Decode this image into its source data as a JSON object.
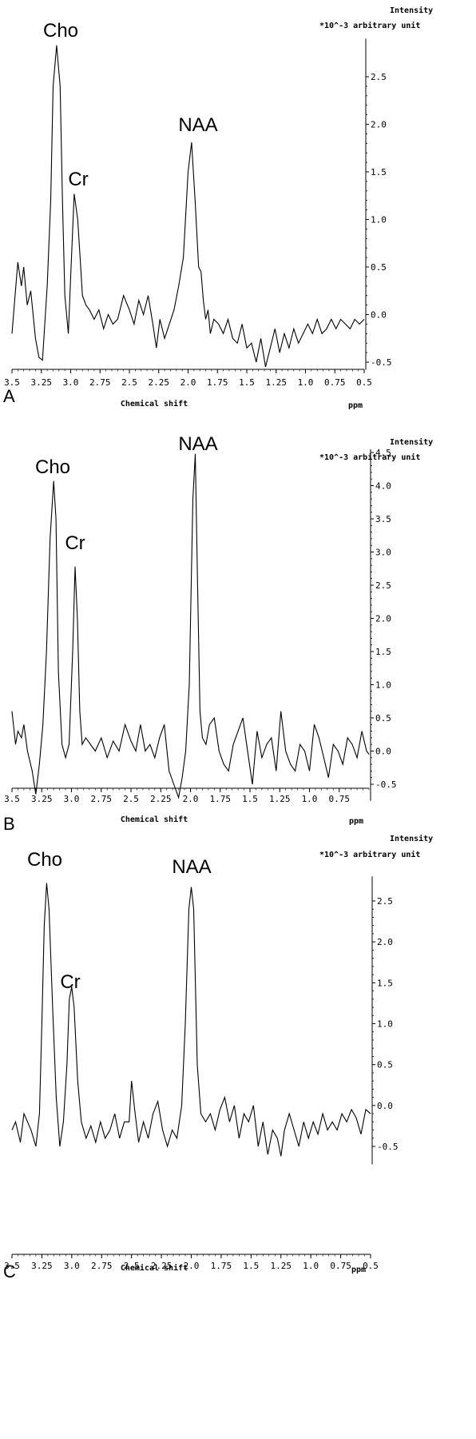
{
  "chart_data": [
    {
      "type": "line",
      "panel_label": "A",
      "xlabel": "Chemical shift",
      "x_unit": "ppm",
      "ylabel": "Intensity",
      "y_unit": "*10^-3 arbitrary unit",
      "xlim": [
        3.5,
        0.5
      ],
      "ylim": [
        -0.58,
        2.9
      ],
      "x_ticks": [
        "3.5",
        "3.25",
        "3.0",
        "2.75",
        "2.5",
        "2.25",
        "2.0",
        "1.75",
        "1.5",
        "1.25",
        "1.0",
        "0.75",
        "0.5"
      ],
      "y_ticks": [
        "2.5",
        "2.0",
        "1.5",
        "1.0",
        "0.5",
        "0.0",
        "-0.5"
      ],
      "y_tick_values": [
        2.5,
        2.0,
        1.5,
        1.0,
        0.5,
        0.0,
        -0.5
      ],
      "annotations": [
        {
          "text": "Cho",
          "x": 3.09,
          "y": 2.83
        },
        {
          "text": "Cr",
          "x": 2.92,
          "y": 1.27
        },
        {
          "text": "NAA",
          "x": 1.89,
          "y": 1.81
        }
      ],
      "series": [
        {
          "x": [
            3.5,
            3.45,
            3.42,
            3.4,
            3.37,
            3.34,
            3.3,
            3.27,
            3.24,
            3.2,
            3.17,
            3.15,
            3.12,
            3.09,
            3.07,
            3.05,
            3.02,
            3.0,
            2.97,
            2.94,
            2.92,
            2.9,
            2.87,
            2.84,
            2.8,
            2.76,
            2.72,
            2.68,
            2.64,
            2.6,
            2.55,
            2.5,
            2.46,
            2.42,
            2.38,
            2.34,
            2.3,
            2.27,
            2.24,
            2.2,
            2.16,
            2.12,
            2.08,
            2.04,
            2.0,
            1.97,
            1.94,
            1.91,
            1.89,
            1.87,
            1.85,
            1.83,
            1.81,
            1.78,
            1.74,
            1.7,
            1.66,
            1.62,
            1.58,
            1.54,
            1.5,
            1.46,
            1.42,
            1.38,
            1.34,
            1.3,
            1.26,
            1.22,
            1.18,
            1.14,
            1.1,
            1.06,
            1.02,
            0.98,
            0.94,
            0.9,
            0.86,
            0.82,
            0.78,
            0.74,
            0.7,
            0.66,
            0.62,
            0.58,
            0.54,
            0.5
          ],
          "y": [
            -0.2,
            0.55,
            0.3,
            0.5,
            0.1,
            0.25,
            -0.25,
            -0.45,
            -0.48,
            0.3,
            1.2,
            2.4,
            2.83,
            2.4,
            1.2,
            0.2,
            -0.2,
            0.4,
            1.27,
            1.0,
            0.6,
            0.2,
            0.1,
            0.05,
            -0.05,
            0.05,
            -0.15,
            0.0,
            -0.1,
            -0.05,
            0.2,
            0.05,
            -0.1,
            0.15,
            0.0,
            0.2,
            -0.1,
            -0.35,
            -0.05,
            -0.25,
            -0.1,
            0.05,
            0.3,
            0.6,
            1.5,
            1.81,
            1.2,
            0.5,
            0.45,
            0.15,
            -0.05,
            0.05,
            -0.2,
            -0.05,
            -0.1,
            -0.2,
            -0.05,
            -0.25,
            -0.3,
            -0.1,
            -0.35,
            -0.3,
            -0.5,
            -0.25,
            -0.55,
            -0.35,
            -0.15,
            -0.4,
            -0.2,
            -0.35,
            -0.15,
            -0.3,
            -0.2,
            -0.1,
            -0.2,
            -0.05,
            -0.2,
            -0.15,
            -0.05,
            -0.15,
            -0.05,
            -0.1,
            -0.15,
            -0.05,
            -0.1,
            -0.05
          ]
        }
      ]
    },
    {
      "type": "line",
      "panel_label": "B",
      "xlabel": "Chemical shift",
      "x_unit": "ppm",
      "ylabel": "Intensity",
      "y_unit": "*10^-3 arbitrary unit",
      "xlim": [
        3.5,
        0.5
      ],
      "ylim": [
        -0.75,
        4.55
      ],
      "x_ticks": [
        "3.5",
        "3.25",
        "3.0",
        "2.75",
        "2.5",
        "2.25",
        "2.0",
        "1.75",
        "1.5",
        "1.25",
        "1.0",
        "0.75"
      ],
      "y_ticks": [
        "4.5",
        "4.0",
        "3.5",
        "3.0",
        "2.5",
        "2.0",
        "1.5",
        "1.0",
        "0.5",
        "0.0",
        "-0.5"
      ],
      "y_tick_values": [
        4.5,
        4.0,
        3.5,
        3.0,
        2.5,
        2.0,
        1.5,
        1.0,
        0.5,
        0.0,
        -0.5
      ],
      "annotations": [
        {
          "text": "Cho",
          "x": 3.14,
          "y": 4.07
        },
        {
          "text": "Cr",
          "x": 2.95,
          "y": 2.78
        },
        {
          "text": "NAA",
          "x": 1.95,
          "y": 4.48
        }
      ],
      "series": [
        {
          "x": [
            3.5,
            3.47,
            3.45,
            3.42,
            3.4,
            3.37,
            3.33,
            3.3,
            3.27,
            3.24,
            3.21,
            3.18,
            3.15,
            3.13,
            3.11,
            3.08,
            3.05,
            3.02,
            2.99,
            2.97,
            2.95,
            2.93,
            2.91,
            2.88,
            2.84,
            2.8,
            2.75,
            2.7,
            2.65,
            2.6,
            2.55,
            2.5,
            2.46,
            2.42,
            2.38,
            2.34,
            2.3,
            2.26,
            2.22,
            2.18,
            2.14,
            2.1,
            2.07,
            2.04,
            2.01,
            1.98,
            1.96,
            1.94,
            1.92,
            1.9,
            1.87,
            1.84,
            1.8,
            1.76,
            1.72,
            1.68,
            1.64,
            1.6,
            1.56,
            1.52,
            1.48,
            1.44,
            1.4,
            1.36,
            1.32,
            1.28,
            1.24,
            1.2,
            1.16,
            1.12,
            1.08,
            1.04,
            1.0,
            0.96,
            0.92,
            0.88,
            0.84,
            0.8,
            0.76,
            0.72,
            0.68,
            0.64,
            0.6,
            0.56,
            0.52,
            0.5
          ],
          "y": [
            0.6,
            0.1,
            0.3,
            0.2,
            0.4,
            0.0,
            -0.3,
            -0.65,
            -0.2,
            0.4,
            1.5,
            3.2,
            4.07,
            3.5,
            1.2,
            0.1,
            -0.1,
            0.1,
            1.5,
            2.78,
            2.0,
            0.6,
            0.1,
            0.2,
            0.1,
            0.0,
            0.2,
            -0.1,
            0.15,
            0.0,
            0.4,
            0.15,
            0.0,
            0.4,
            0.0,
            0.1,
            -0.1,
            0.2,
            0.4,
            -0.3,
            -0.5,
            -0.7,
            -0.4,
            0.0,
            1.0,
            3.8,
            4.48,
            2.5,
            0.6,
            0.2,
            0.1,
            0.4,
            0.5,
            0.0,
            -0.2,
            -0.3,
            0.1,
            0.3,
            0.5,
            0.0,
            -0.5,
            0.3,
            -0.1,
            0.1,
            0.2,
            -0.3,
            0.6,
            0.0,
            -0.2,
            -0.3,
            0.1,
            0.0,
            -0.3,
            0.4,
            0.2,
            -0.1,
            -0.4,
            0.1,
            0.0,
            -0.2,
            0.2,
            0.1,
            -0.1,
            0.3,
            0.0,
            -0.05
          ]
        }
      ]
    },
    {
      "type": "line",
      "panel_label": "C",
      "xlabel": "Chemical shift",
      "x_unit": "ppm",
      "ylabel": "Intensity",
      "y_unit": "*10^-3 arbitrary unit",
      "xlim": [
        3.5,
        0.5
      ],
      "ylim": [
        -0.72,
        2.8
      ],
      "x_ticks": [
        "3.5",
        "3.25",
        "3.0",
        "2.75",
        "2.5",
        "2.25",
        "2.0",
        "1.75",
        "1.5",
        "1.25",
        "1.0",
        "0.75",
        "0.5"
      ],
      "y_ticks": [
        "2.5",
        "2.0",
        "1.5",
        "1.0",
        "0.5",
        "0.0",
        "-0.5"
      ],
      "y_tick_values": [
        2.5,
        2.0,
        1.5,
        1.0,
        0.5,
        0.0,
        -0.5
      ],
      "annotations": [
        {
          "text": "Cho",
          "x": 3.2,
          "y": 2.72
        },
        {
          "text": "Cr",
          "x": 3.01,
          "y": 1.45
        },
        {
          "text": "NAA",
          "x": 2.0,
          "y": 2.67
        }
      ],
      "series": [
        {
          "x": [
            3.5,
            3.47,
            3.43,
            3.4,
            3.37,
            3.34,
            3.3,
            3.27,
            3.25,
            3.23,
            3.21,
            3.19,
            3.16,
            3.13,
            3.1,
            3.07,
            3.04,
            3.02,
            3.0,
            2.98,
            2.95,
            2.92,
            2.88,
            2.84,
            2.8,
            2.76,
            2.72,
            2.68,
            2.64,
            2.6,
            2.56,
            2.52,
            2.5,
            2.47,
            2.44,
            2.4,
            2.36,
            2.32,
            2.28,
            2.24,
            2.2,
            2.16,
            2.12,
            2.08,
            2.05,
            2.02,
            2.0,
            1.98,
            1.95,
            1.92,
            1.88,
            1.84,
            1.8,
            1.76,
            1.72,
            1.68,
            1.64,
            1.6,
            1.56,
            1.52,
            1.48,
            1.44,
            1.4,
            1.36,
            1.32,
            1.28,
            1.25,
            1.22,
            1.18,
            1.14,
            1.1,
            1.06,
            1.02,
            0.98,
            0.94,
            0.9,
            0.86,
            0.82,
            0.78,
            0.74,
            0.7,
            0.66,
            0.62,
            0.58,
            0.54,
            0.5
          ],
          "y": [
            -0.3,
            -0.2,
            -0.45,
            -0.1,
            -0.2,
            -0.3,
            -0.5,
            -0.1,
            1.0,
            2.2,
            2.72,
            2.4,
            1.2,
            0.1,
            -0.5,
            -0.2,
            0.5,
            1.3,
            1.45,
            1.2,
            0.3,
            -0.2,
            -0.4,
            -0.25,
            -0.45,
            -0.2,
            -0.4,
            -0.3,
            -0.1,
            -0.4,
            -0.2,
            -0.2,
            0.3,
            -0.1,
            -0.45,
            -0.2,
            -0.4,
            -0.1,
            0.05,
            -0.3,
            -0.5,
            -0.3,
            -0.4,
            0.0,
            1.0,
            2.4,
            2.67,
            2.4,
            0.5,
            -0.1,
            -0.2,
            -0.1,
            -0.3,
            -0.05,
            0.1,
            -0.2,
            0.0,
            -0.4,
            -0.1,
            -0.2,
            0.0,
            -0.5,
            -0.2,
            -0.6,
            -0.3,
            -0.4,
            -0.62,
            -0.3,
            -0.1,
            -0.3,
            -0.5,
            -0.2,
            -0.4,
            -0.2,
            -0.35,
            -0.1,
            -0.3,
            -0.2,
            -0.3,
            -0.1,
            -0.2,
            -0.05,
            -0.15,
            -0.35,
            -0.05,
            -0.1
          ]
        }
      ]
    }
  ]
}
